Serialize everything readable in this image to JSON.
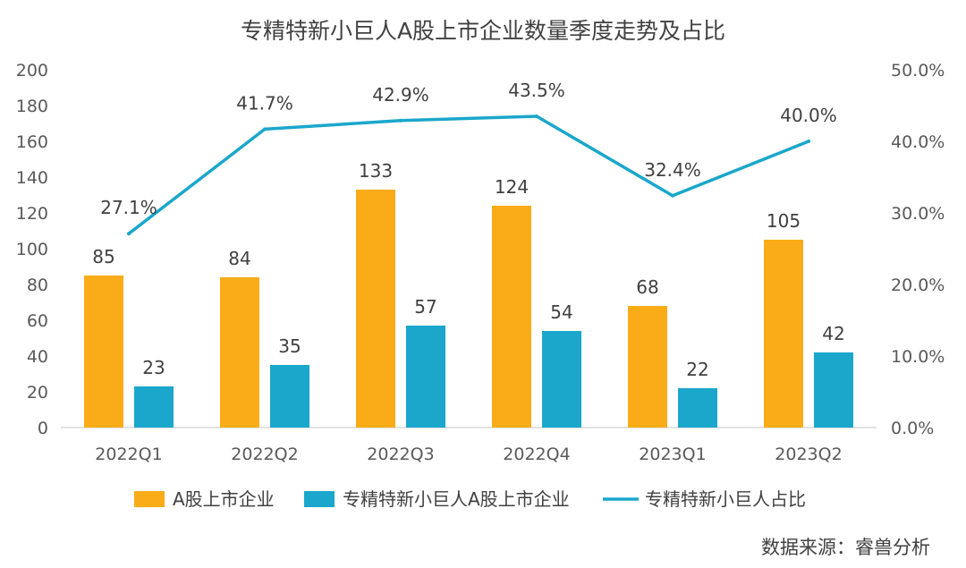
{
  "chart_data": {
    "type": "bar",
    "title": "专精特新小巨人A股上市企业数量季度走势及占比",
    "categories": [
      "2022Q1",
      "2022Q2",
      "2022Q3",
      "2022Q4",
      "2023Q1",
      "2023Q2"
    ],
    "series": [
      {
        "name": "A股上市企业",
        "type": "bar",
        "axis": "left",
        "color": "#FAAC18",
        "values": [
          85,
          84,
          133,
          124,
          68,
          105
        ],
        "labels": [
          "85",
          "84",
          "133",
          "124",
          "68",
          "105"
        ]
      },
      {
        "name": "专精特新小巨人A股上市企业",
        "type": "bar",
        "axis": "left",
        "color": "#1AA7CB",
        "values": [
          23,
          35,
          57,
          54,
          22,
          42
        ],
        "labels": [
          "23",
          "35",
          "57",
          "54",
          "22",
          "42"
        ]
      },
      {
        "name": "专精特新小巨人占比",
        "type": "line",
        "axis": "right",
        "color": "#1AA7CB",
        "values": [
          27.1,
          41.7,
          42.9,
          43.5,
          32.4,
          40.0
        ],
        "labels": [
          "27.1%",
          "41.7%",
          "42.9%",
          "43.5%",
          "32.4%",
          "40.0%"
        ]
      }
    ],
    "left_axis": {
      "min": 0,
      "max": 200,
      "ticks": [
        "0",
        "20",
        "40",
        "60",
        "80",
        "100",
        "120",
        "140",
        "160",
        "180",
        "200"
      ]
    },
    "right_axis": {
      "min": 0,
      "max": 50,
      "ticks": [
        "0.0%",
        "10.0%",
        "20.0%",
        "30.0%",
        "40.0%",
        "50.0%"
      ]
    },
    "grid": false,
    "legend_position": "bottom"
  },
  "source": "数据来源：睿兽分析"
}
